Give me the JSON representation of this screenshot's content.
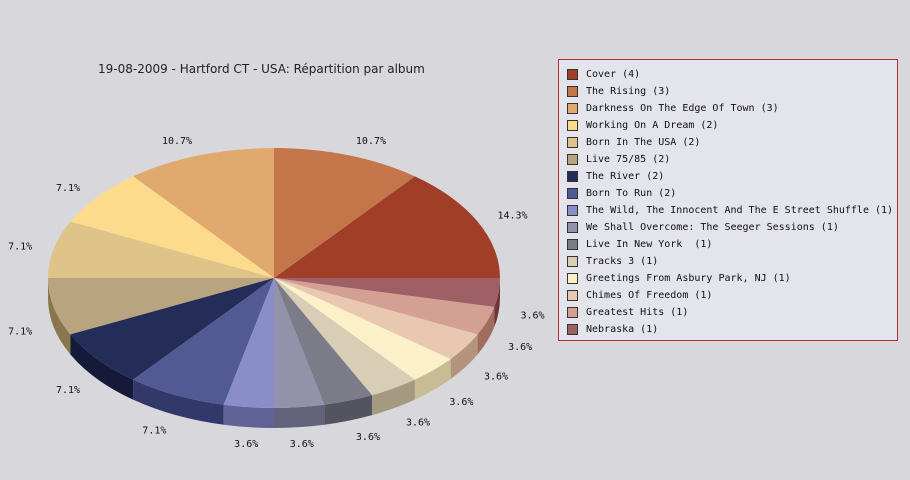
{
  "chart_data": {
    "type": "pie",
    "title": "19-08-2009 - Hartford CT - USA:  Répartition par album",
    "legend_position": "right",
    "slices": [
      {
        "label": "Cover (4)",
        "value": 4,
        "pct_label": "14.3%",
        "color": "#a03e28",
        "side": "#6a1a08"
      },
      {
        "label": "The Rising (3)",
        "value": 3,
        "pct_label": "10.7%",
        "color": "#c4754a",
        "side": "#8a4a1e"
      },
      {
        "label": "Darkness On The Edge Of Town (3)",
        "value": 3,
        "pct_label": "10.7%",
        "color": "#e0aa6e",
        "side": "#aa7438"
      },
      {
        "label": "Working On A Dream (2)",
        "value": 2,
        "pct_label": "7.1%",
        "color": "#fcdc8c",
        "side": "#c8a854"
      },
      {
        "label": "Born In The USA (2)",
        "value": 2,
        "pct_label": "7.1%",
        "color": "#dfc48a",
        "side": "#a8905a"
      },
      {
        "label": "Live 75/85 (2)",
        "value": 2,
        "pct_label": "7.1%",
        "color": "#b8a47e",
        "side": "#8a764e"
      },
      {
        "label": "The River (2)",
        "value": 2,
        "pct_label": "7.1%",
        "color": "#242c58",
        "side": "#141a38"
      },
      {
        "label": "Born To Run (2)",
        "value": 2,
        "pct_label": "7.1%",
        "color": "#525a94",
        "side": "#32386a"
      },
      {
        "label": "The Wild, The Innocent And The E Street Shuffle (1)",
        "value": 1,
        "pct_label": "3.6%",
        "color": "#8a8ec8",
        "side": "#5e6294"
      },
      {
        "label": "We Shall Overcome: The Seeger Sessions (1)",
        "value": 1,
        "pct_label": "3.6%",
        "color": "#9292aa",
        "side": "#62627a"
      },
      {
        "label": "Live In New York  (1)",
        "value": 1,
        "pct_label": "3.6%",
        "color": "#7c7c88",
        "side": "#54545e"
      },
      {
        "label": "Tracks 3 (1)",
        "value": 1,
        "pct_label": "3.6%",
        "color": "#d8ceb6",
        "side": "#a49a82"
      },
      {
        "label": "Greetings From Asbury Park, NJ (1)",
        "value": 1,
        "pct_label": "3.6%",
        "color": "#fcf0c8",
        "side": "#c8bc94"
      },
      {
        "label": "Chimes Of Freedom (1)",
        "value": 1,
        "pct_label": "3.6%",
        "color": "#e8c8b0",
        "side": "#b4947c"
      },
      {
        "label": "Greatest Hits (1)",
        "value": 1,
        "pct_label": "3.6%",
        "color": "#d4a094",
        "side": "#a06c60"
      },
      {
        "label": "Nebraska (1)",
        "value": 1,
        "pct_label": "3.6%",
        "color": "#9e6064",
        "side": "#6e3438"
      }
    ]
  }
}
